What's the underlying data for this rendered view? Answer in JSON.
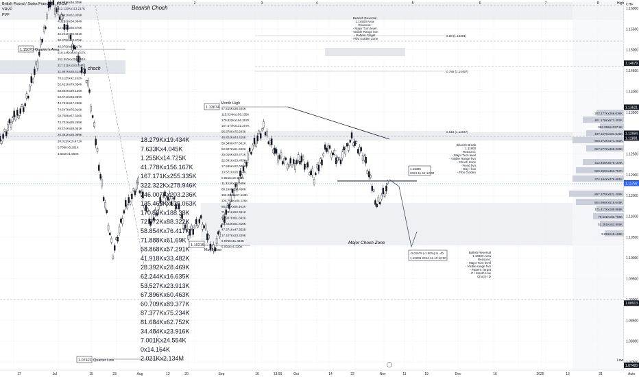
{
  "symbol_title": "British Pound / Swiss Franc, 4h, FXCM",
  "indicators": [
    "VRVP",
    "PVF"
  ],
  "currency": "CHF",
  "axis_mode": "Auto",
  "zones": {
    "bearish_choch": "Bearish Choch",
    "choch": "choch",
    "major_choch_zone": "Major Choch Zone"
  },
  "levels": {
    "quarters_area_price": "1.15070",
    "quarters_area_label": "Quarter's Area",
    "month_high_price": "1.13674",
    "month_high_label": "Month High",
    "month_low_price": "1.10215",
    "month_low_label": "Month low",
    "quarter_low_price": "1.07421",
    "quarter_low_label": "Quarter Low"
  },
  "fib_labels": {
    "f0886": "0.88 (1.15301)",
    "f0786": "0.786 (1.14497)",
    "f0618": "0.618 (1.12947)"
  },
  "notes": {
    "bearish_reversal": [
      "Bearish Reversal",
      "1.14500 Area",
      "Reasons:",
      "- Major Turn level",
      "- Visible Range hvn",
      "- Pattern Target",
      "- Fibo Golden Zone"
    ],
    "bearish_break": [
      "Bearish Break",
      "1.11800",
      "Reasons:",
      "- Major Turn level",
      "- Visible Range hvn",
      "- Choch Zone",
      "- Fixed hvn",
      "- Day / low",
      "- Fibo Golden"
    ],
    "bullish_reversal": [
      "Bullish Reversal",
      "1.10300 Area",
      "Reasons:",
      "- Major Turn level",
      "- Visible range hvn",
      "- Pattern Target",
      "- P / Month Low",
      "Choch / D"
    ]
  },
  "price_tag_box": {
    "price": "1.11885",
    "date": "2024-11-12 12:00"
  },
  "measure_box": {
    "line1": "-0.01679 (-1.50%) to -4h",
    "line2": "1.10206    2024-11-13 12:00"
  },
  "volume_labels_large": [
    "18.279Kx19.434K",
    "7.633Kx4.045K",
    "1.255Kx14.725K",
    "41.778Kx156.167K",
    "167.171Kx255.335K",
    "322.322Kx278.946K",
    "246.007Kx203.236K",
    "135.463Kx135.063K",
    "170.58Kx188.38K",
    "72.872Kx88.322K",
    "58.854Kx76.417K",
    "71.888Kx61.69K",
    "58.868Kx57.291K",
    "41.918Kx33.482K",
    "28.392Kx28.469K",
    "62.244Kx16.635K",
    "53.527Kx23.913K",
    "67.896Kx60.463K",
    "60.709Kx89.377K",
    "87.377Kx75.234K",
    "81.684Kx62.752K",
    "34.484Kx23.916K",
    "7.001Kx24.554K",
    "0x14.164K",
    "2.021Kx2.134M"
  ],
  "volume_labels_small_left": [
    "34.831Kx46.309K",
    "112.132Kx113.217K",
    "61.961Kx62.039K",
    "41.233Kx34.084K",
    "42.667Kx56.676K",
    "45.241Kx35.951K",
    "30.379Kx23.475K",
    "46.975Kx50.017K",
    "219.145Kx100.017K",
    "262.551Kx256.491K",
    "317.211Kx343.047K",
    "31.957Kx26.414K",
    "78.112Kx42.162K",
    "52.421Kx79.354K",
    "68.862Kx39.135K",
    "54.071Kx65.039K",
    "44.751Kx67.296K",
    "74.647Kx76.016K",
    "58.708Kx57.326K",
    "74.701Kx85.265K",
    "29.474Kx29.051K",
    "20.381Kx38.089K",
    "20.011Kx15.471K",
    "5.706Kx3.201K",
    "3.631Kx1.650K"
  ],
  "volume_labels_small_mid": [
    "47.515Kx36.404K",
    "115.314Kx109.135K",
    "179.832Kx166.357K",
    "157.577Kx122.207K",
    "96.879Kx75.603K",
    "46.824Kx44.415K",
    "56.349Kx77.661K",
    "52.907Kx61.692K",
    "26.016Kx20.471K",
    "22.091Kx23.405K",
    "17.595Kx22.006K",
    "13.571Kx20.164K",
    "9.951Kx20.084K",
    "11.321Kx10.088K",
    "88.163Kx52.468K",
    "102.031Kx97.118K",
    "126.758Kx86.126K",
    "98.611Kx68.461K",
    "71.331Kx52.391K",
    "52.907Kx61.692K",
    "92.403Kx81.418K",
    "47.371Kx47.352K",
    "17.107Kx23.229K",
    "9.875Kx11.493K",
    "5.091Kx1.229K"
  ],
  "profile_right_labels": [
    "283.177Kx266.036K",
    "461.179Kx571.202K",
    "362.356Kx337.9K",
    "187.167Kx181.545K",
    "960.373Kx471.202K",
    "607.577Kx469.229K",
    "413.456Kx578.154K",
    "560.350Kx463.757K",
    "374.184Kx478.891K",
    "857.375Kx531.409K",
    "564.596Kx518.049K",
    "101.417Kx109.959K",
    "78.631Kx82.786K",
    "51.351Kx53.959K",
    "9.851Kx5.159K"
  ],
  "price_axis": {
    "high_label": "High",
    "low_label": "Low",
    "ticks": [
      "1.16000",
      "1.15500",
      "1.15000",
      "1.14500",
      "1.14000",
      "1.13500",
      "1.13000",
      "1.12500",
      "1.12000",
      "1.11500",
      "1.11000",
      "1.10500",
      "1.10000",
      "1.09500",
      "1.09000",
      "1.08500",
      "1.08000",
      "1.07500"
    ],
    "tags": [
      {
        "price": "1.14679",
        "color": "#131722"
      },
      {
        "price": "1.13621",
        "color": "#131722"
      },
      {
        "price": "1.12994",
        "color": "#131722"
      },
      {
        "price": "1.12881",
        "color": "#131722"
      },
      {
        "price": "1.11800",
        "color": "#131722"
      },
      {
        "price": "1.11796",
        "color": "#131722"
      },
      {
        "price": "1.11793",
        "color": "#2962ff"
      },
      {
        "price": "1.08913",
        "color": "#131722"
      },
      {
        "price": "1.07420",
        "color": "#131722"
      }
    ],
    "current_price": "1.11793",
    "current_countdown": "03:16:34"
  },
  "time_axis": [
    "17",
    "Jul",
    "15",
    "23",
    "Aug",
    "12",
    "20",
    "Sep",
    "16",
    "13:00",
    "Oct",
    "14",
    "22",
    "Nov",
    "11",
    "19",
    "Dec",
    "16",
    "2025",
    "13",
    "21"
  ],
  "top_numbers": [
    "2",
    "3",
    "4",
    "5",
    "6",
    "7",
    "8"
  ],
  "chart_data": {
    "type": "line",
    "description_series": "4h close (approx)",
    "x": [
      "Jun 17",
      "Jun 24",
      "Jul 1",
      "Jul 8",
      "Jul 11",
      "Jul 15",
      "Jul 22",
      "Jul 29",
      "Aug 1",
      "Aug 5",
      "Aug 8",
      "Aug 12",
      "Aug 16",
      "Aug 20",
      "Aug 26",
      "Sep 2",
      "Sep 9",
      "Sep 12",
      "Sep 16",
      "Sep 20",
      "Sep 26",
      "Oct 1",
      "Oct 7",
      "Oct 11",
      "Oct 15",
      "Oct 18",
      "Oct 23",
      "Oct 28",
      "Nov 1",
      "Nov 5",
      "Nov 8",
      "Nov 12"
    ],
    "series": [
      {
        "values": [
          1.128,
          1.133,
          1.137,
          1.147,
          1.162,
          1.157,
          1.15,
          1.142,
          1.12,
          1.101,
          1.112,
          1.118,
          1.108,
          1.115,
          1.113,
          1.106,
          1.109,
          1.102,
          1.111,
          1.119,
          1.126,
          1.131,
          1.125,
          1.122,
          1.124,
          1.119,
          1.127,
          1.123,
          1.129,
          1.124,
          1.113,
          1.1179
        ]
      }
    ],
    "ylim": [
      1.07,
      1.165
    ]
  }
}
